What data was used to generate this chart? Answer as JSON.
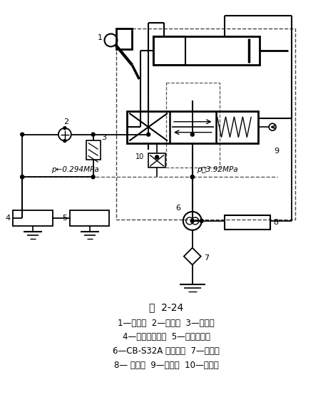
{
  "title": "图  2-24",
  "legend_lines": [
    "1—操纵叉  2—散热器  3—安全阀",
    "4—润滑主离合器  5—润滑分动筱",
    "6—CB-S32A 齿轮油泵  7—滤油器",
    "8— 分动筱  9—助力阀  10—安全阀"
  ],
  "bg_color": "#ffffff"
}
